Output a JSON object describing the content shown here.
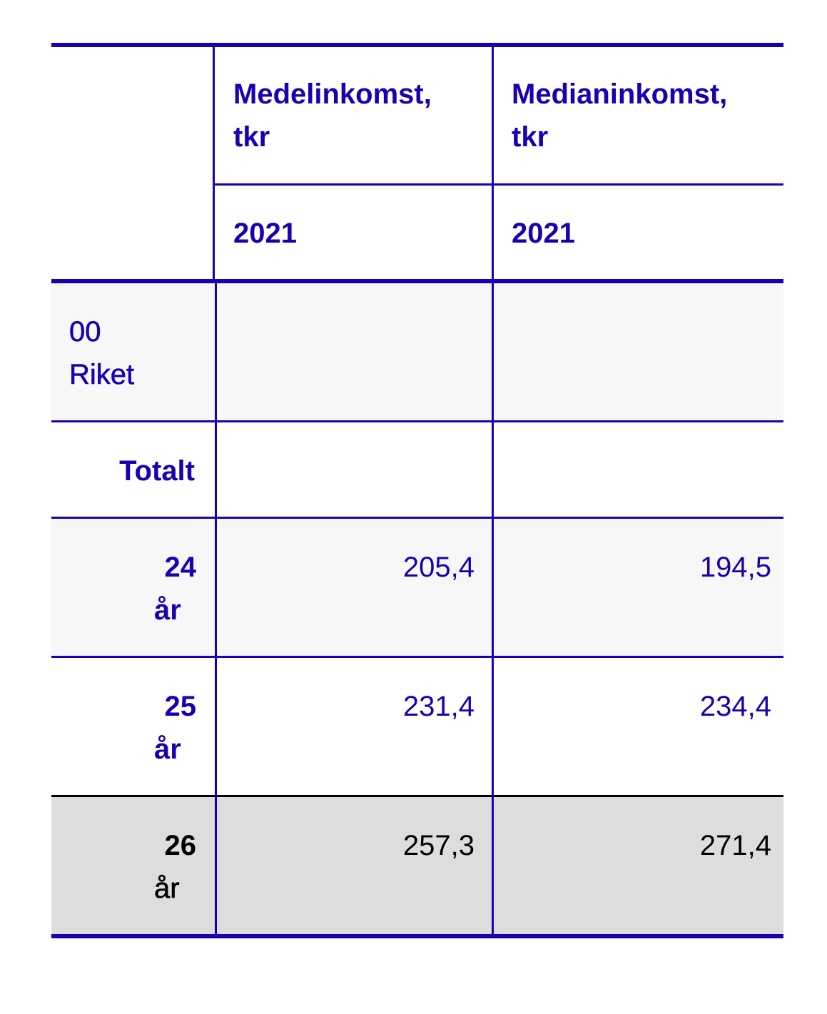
{
  "colors": {
    "accent": "#1a00b0",
    "row_shade": "#f7f7f7",
    "highlight_row": "#dddddd",
    "highlight_text": "#000000"
  },
  "table": {
    "columns": [
      {
        "label": "Medelinkomst, tkr",
        "line1": "Medelinkomst,",
        "line2": "tkr",
        "year": "2021"
      },
      {
        "label": "Medianinkomst, tkr",
        "line1": "Medianinkomst,",
        "line2": "tkr",
        "year": "2021"
      }
    ],
    "region": {
      "code": "00",
      "name": "Riket"
    },
    "group": "Totalt",
    "rows": [
      {
        "age": "24",
        "unit": "år",
        "mean": "205,4",
        "median": "194,5"
      },
      {
        "age": "25",
        "unit": "år",
        "mean": "231,4",
        "median": "234,4"
      },
      {
        "age": "26",
        "unit": "år",
        "mean": "257,3",
        "median": "271,4",
        "highlighted": true
      }
    ]
  }
}
